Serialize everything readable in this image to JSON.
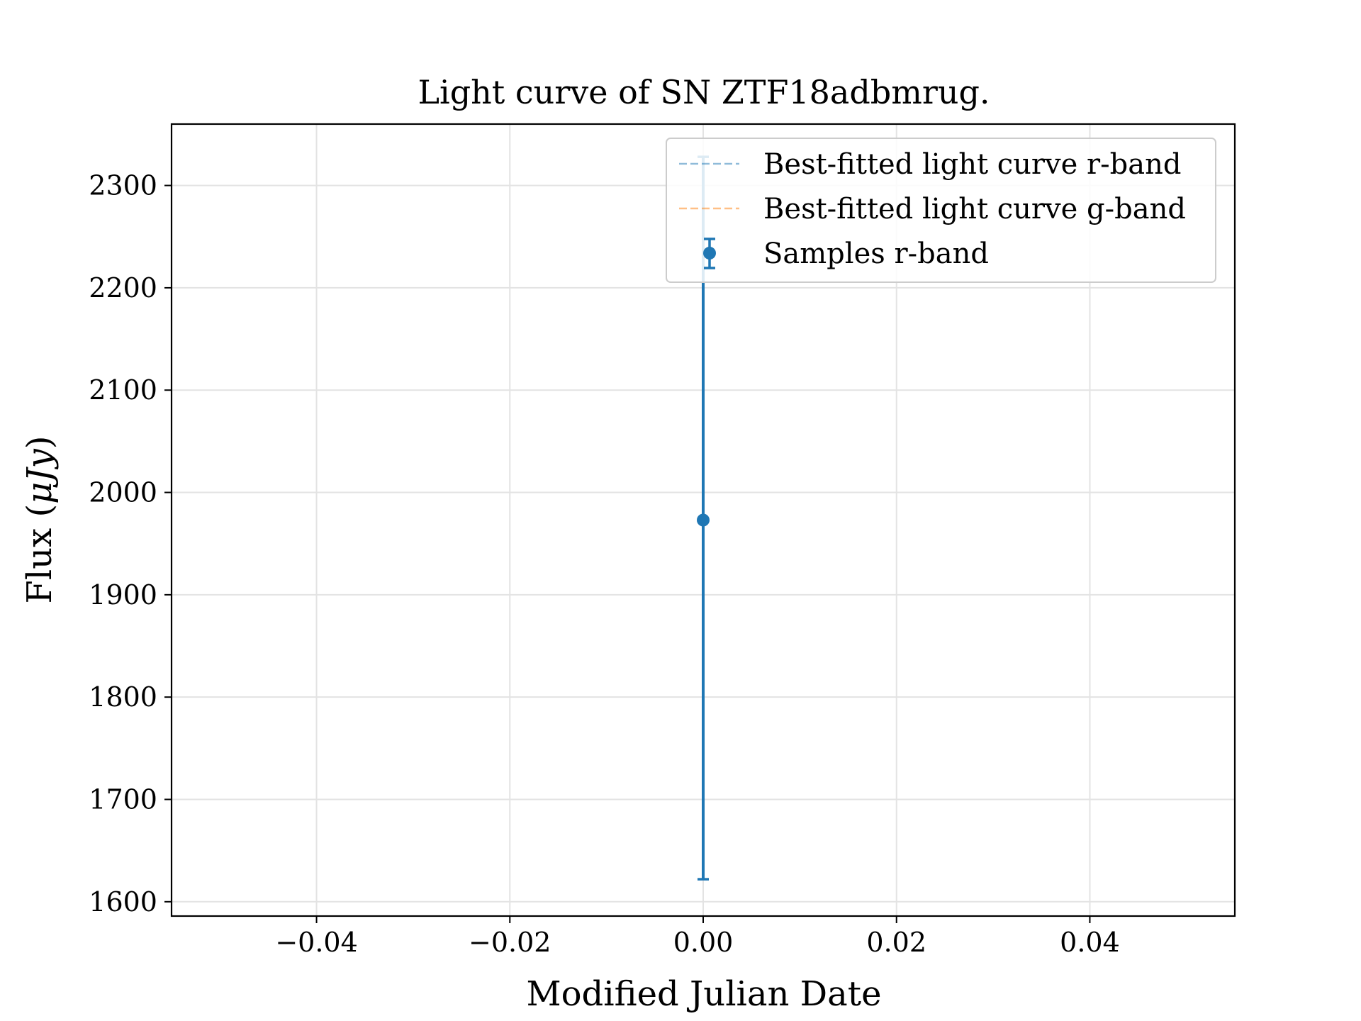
{
  "chart_data": {
    "type": "scatter",
    "title": "Light curve of SN ZTF18adbmrug.",
    "xlabel": "Modified Julian Date",
    "ylabel_main": "Flux (",
    "ylabel_unit": "μJy",
    "ylabel_close": ")",
    "xlim": [
      -0.055,
      0.055
    ],
    "ylim": [
      1586,
      2360
    ],
    "xticks": [
      -0.04,
      -0.02,
      0.0,
      0.02,
      0.04
    ],
    "xtick_labels": [
      "−0.04",
      "−0.02",
      "0.00",
      "0.02",
      "0.04"
    ],
    "yticks": [
      1600,
      1700,
      1800,
      1900,
      2000,
      2100,
      2200,
      2300
    ],
    "ytick_labels": [
      "1600",
      "1700",
      "1800",
      "1900",
      "2000",
      "2100",
      "2200",
      "2300"
    ],
    "grid": true,
    "legend_position": "top-right",
    "series": [
      {
        "name": "Best-fitted light curve r-band",
        "kind": "line",
        "style": "dashed",
        "color": "#1f77b4",
        "alpha": 0.5,
        "x": [
          0.0
        ],
        "y": [
          2328
        ]
      },
      {
        "name": "Best-fitted light curve g-band",
        "kind": "line",
        "style": "dashed",
        "color": "#ff7f0e",
        "alpha": 0.5,
        "x": [],
        "y": []
      },
      {
        "name": "Samples r-band",
        "kind": "errorbar",
        "color": "#1f77b4",
        "points": [
          {
            "x": 0.0,
            "y": 1973,
            "yerr_low": 1622,
            "yerr_high": 2328
          }
        ]
      }
    ]
  }
}
